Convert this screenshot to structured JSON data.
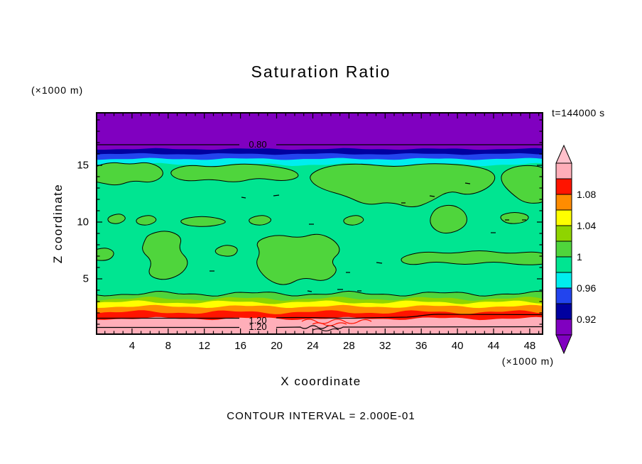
{
  "figure": {
    "title": "Saturation Ratio",
    "time_label": "t=144000 s",
    "footer": "CONTOUR INTERVAL = 2.000E-01",
    "y_axis": {
      "label": "Z coordinate",
      "unit": "(×1000 m)",
      "ticks": [
        5,
        10,
        15
      ]
    },
    "x_axis": {
      "label": "X coordinate",
      "unit": "(×1000 m)",
      "ticks": [
        4,
        8,
        12,
        16,
        20,
        24,
        28,
        32,
        36,
        40,
        44,
        48
      ]
    },
    "contour_labels": {
      "upper": "0.80",
      "lower_a": "1.20",
      "lower_b": "1.20"
    }
  },
  "colors": {
    "purple": "#8000C0",
    "navy": "#0000A0",
    "blue": "#2244EE",
    "cyan": "#00EEEE",
    "spring_green": "#00E591",
    "green": "#4FD53C",
    "green_yellow": "#8FD400",
    "yellow": "#FFFF00",
    "orange": "#FF8C00",
    "red": "#FF1400",
    "pink": "#FFAEB9",
    "pink_light": "#FFC0CB",
    "frame": "#000000"
  },
  "colorbar": {
    "tick_labels": [
      "1.08",
      "1.04",
      "1",
      "0.96",
      "0.92"
    ],
    "segments_top_to_bottom": [
      "pink",
      "red",
      "orange",
      "yellow",
      "green_yellow",
      "green",
      "spring_green",
      "cyan",
      "blue",
      "navy",
      "purple"
    ],
    "arrow_top": "pink_light",
    "arrow_bottom": "purple"
  },
  "chart_data": {
    "type": "filled_contour",
    "title": "Saturation Ratio",
    "xlabel": "X coordinate",
    "ylabel": "Z coordinate",
    "x_unit": "(×1000 m)",
    "y_unit": "(×1000 m)",
    "x_range_km": [
      0,
      49.5
    ],
    "y_range_km": [
      0,
      19.7
    ],
    "x_ticks": [
      4,
      8,
      12,
      16,
      20,
      24,
      28,
      32,
      36,
      40,
      44,
      48
    ],
    "y_ticks": [
      5,
      10,
      15
    ],
    "time_annotation": "t=144000 s",
    "labeled_contour_interval": 0.2,
    "fill_level_interval": 0.02,
    "colorbar_tick_values": [
      1.08,
      1.04,
      1,
      0.96,
      0.92
    ],
    "colorbar_levels_top_to_bottom": [
      {
        "range": "> 1.10",
        "color": "pink"
      },
      {
        "range": "1.08 to 1.10",
        "color": "red"
      },
      {
        "range": "1.06 to 1.08",
        "color": "orange"
      },
      {
        "range": "1.04 to 1.06",
        "color": "yellow"
      },
      {
        "range": "1.02 to 1.04",
        "color": "yellow-green"
      },
      {
        "range": "1.00 to 1.02",
        "color": "green"
      },
      {
        "range": "0.98 to 1.00",
        "color": "spring-green"
      },
      {
        "range": "0.96 to 0.98",
        "color": "cyan"
      },
      {
        "range": "0.94 to 0.96",
        "color": "blue"
      },
      {
        "range": "0.92 to 0.94",
        "color": "navy"
      },
      {
        "range": "< 0.92",
        "color": "purple"
      }
    ],
    "labeled_contours": [
      {
        "value": 0.8,
        "z_km": 16.8,
        "region": "horizontal line across upper purple layer"
      },
      {
        "value": 1.2,
        "z_km": 1.5,
        "region": "near-horizontal line in lower pink layer"
      },
      {
        "value": 1.2,
        "z_km": 0.75,
        "region": "wavy line in lower pink layer"
      }
    ],
    "vertical_structure": [
      {
        "z_km": [
          16.4,
          19.7
        ],
        "saturation_ratio": "< 0.92",
        "fill": "purple"
      },
      {
        "z_km": [
          16.0,
          16.4
        ],
        "saturation_ratio": "0.92 to 0.94",
        "fill": "navy"
      },
      {
        "z_km": [
          15.6,
          16.0
        ],
        "saturation_ratio": "0.94 to 0.96",
        "fill": "blue"
      },
      {
        "z_km": [
          15.1,
          15.6
        ],
        "saturation_ratio": "0.96 to 0.98",
        "fill": "cyan"
      },
      {
        "z_km": [
          3.7,
          15.1
        ],
        "saturation_ratio": "0.98 to 1.00 with irregular embedded patches of 1.00 to 1.02",
        "fill": "spring-green with green patches"
      },
      {
        "z_km": [
          3.3,
          3.7
        ],
        "saturation_ratio": "1.00 to 1.02",
        "fill": "green"
      },
      {
        "z_km": [
          2.9,
          3.3
        ],
        "saturation_ratio": "1.02 to 1.04",
        "fill": "yellow-green"
      },
      {
        "z_km": [
          2.6,
          2.9
        ],
        "saturation_ratio": "1.04 to 1.06",
        "fill": "yellow"
      },
      {
        "z_km": [
          2.1,
          2.6
        ],
        "saturation_ratio": "1.06 to 1.08",
        "fill": "orange"
      },
      {
        "z_km": [
          1.5,
          2.1
        ],
        "saturation_ratio": "1.08 to 1.10",
        "fill": "red"
      },
      {
        "z_km": [
          0,
          1.5
        ],
        "saturation_ratio": "> 1.10 with two 1.20 contours",
        "fill": "pink"
      }
    ],
    "footer_note": "CONTOUR INTERVAL = 2.000E-01",
    "legend_position": "right colorbar with up/down overflow arrows",
    "grid": false
  }
}
